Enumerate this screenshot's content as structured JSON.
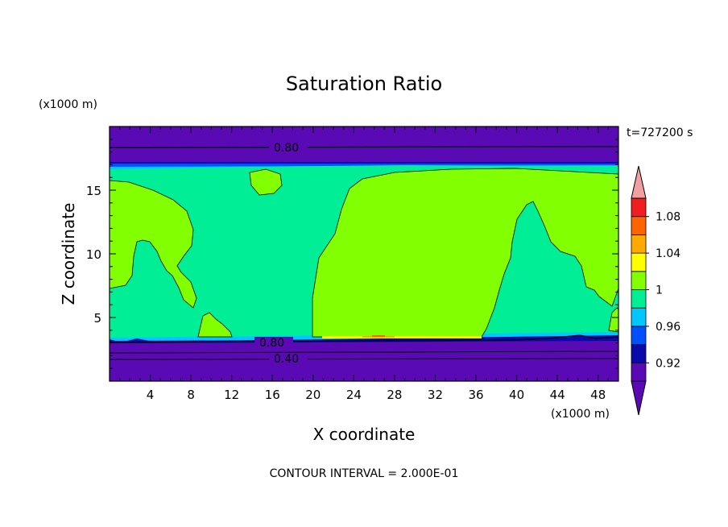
{
  "chart_data": {
    "type": "heatmap",
    "title": "Saturation Ratio",
    "xlabel": "X coordinate",
    "ylabel": "Z coordinate",
    "x_unit": "(x1000 m)",
    "y_unit": "(x1000 m)",
    "time_label": "t=727200 s",
    "footer": "CONTOUR INTERVAL = 2.000E-01",
    "xlim": [
      0,
      50
    ],
    "ylim": [
      0,
      20
    ],
    "x_ticks": [
      "4",
      "8",
      "12",
      "16",
      "20",
      "24",
      "28",
      "32",
      "36",
      "40",
      "44",
      "48"
    ],
    "y_ticks": [
      "5",
      "10",
      "15"
    ],
    "contour_labels": [
      "0.80",
      "0.80",
      "0.40"
    ],
    "colorbar": {
      "levels": [
        0.9,
        0.92,
        0.94,
        0.96,
        0.98,
        1.0,
        1.02,
        1.04,
        1.06,
        1.08,
        1.1
      ],
      "colors": [
        "#5a0ab4",
        "#0a0aaa",
        "#0050ff",
        "#00c8ff",
        "#00ee96",
        "#82ff00",
        "#ffff00",
        "#ffaa00",
        "#ff6400",
        "#f01e1e",
        "#f0a0a0"
      ],
      "tick_labels": [
        "0.92",
        "0.96",
        "1",
        "1.04",
        "1.08"
      ],
      "extend": "both"
    },
    "regions": [
      {
        "value": "<0.92",
        "color": "#5a0ab4",
        "description": "dry layers above z≈17 and below z≈3.5"
      },
      {
        "value": "0.98-1.00",
        "color": "#00ee96",
        "description": "slightly subsaturated middle layer"
      },
      {
        "value": "1.00-1.02",
        "color": "#82ff00",
        "description": "saturated cloud regions"
      }
    ]
  }
}
